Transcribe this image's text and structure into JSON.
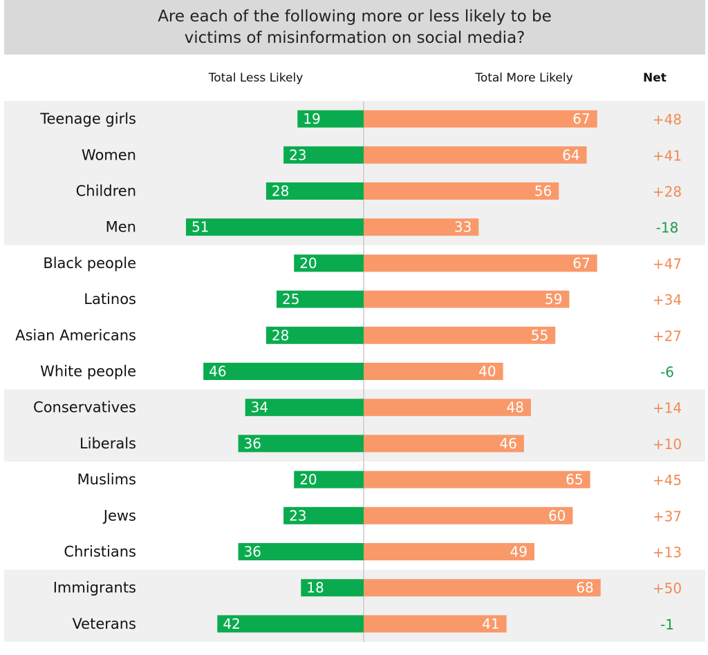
{
  "colors": {
    "less": "#0aab4e",
    "more": "#f9996a",
    "net_positive": "#f28a55",
    "net_negative": "#1a9b4a",
    "band": "#f0f0f0",
    "title_bg": "#d9d9d9"
  },
  "chart_data": {
    "type": "bar",
    "title": "Are each of the following more or less likely to be victims of misinformation on social media?",
    "column_headers": {
      "less": "Total Less Likely",
      "more": "Total More Likely",
      "net": "Net"
    },
    "categories": [
      "Teenage girls",
      "Women",
      "Children",
      "Men",
      "Black people",
      "Latinos",
      "Asian Americans",
      "White people",
      "Conservatives",
      "Liberals",
      "Muslims",
      "Jews",
      "Christians",
      "Immigrants",
      "Veterans"
    ],
    "series": [
      {
        "name": "Total Less Likely",
        "values": [
          19,
          23,
          28,
          51,
          20,
          25,
          28,
          46,
          34,
          36,
          20,
          23,
          36,
          18,
          42
        ]
      },
      {
        "name": "Total More Likely",
        "values": [
          67,
          64,
          56,
          33,
          67,
          59,
          55,
          40,
          48,
          46,
          65,
          60,
          49,
          68,
          41
        ]
      }
    ],
    "net": [
      "+48",
      "+41",
      "+28",
      "-18",
      "+47",
      "+34",
      "+27",
      "-6",
      "+14",
      "+10",
      "+45",
      "+37",
      "+13",
      "+50",
      "-1"
    ],
    "groups": [
      {
        "rows": [
          0,
          1,
          2,
          3
        ],
        "shaded": true
      },
      {
        "rows": [
          4,
          5,
          6,
          7
        ],
        "shaded": false
      },
      {
        "rows": [
          8,
          9
        ],
        "shaded": true
      },
      {
        "rows": [
          10,
          11,
          12
        ],
        "shaded": false
      },
      {
        "rows": [
          13,
          14
        ],
        "shaded": true
      }
    ]
  }
}
